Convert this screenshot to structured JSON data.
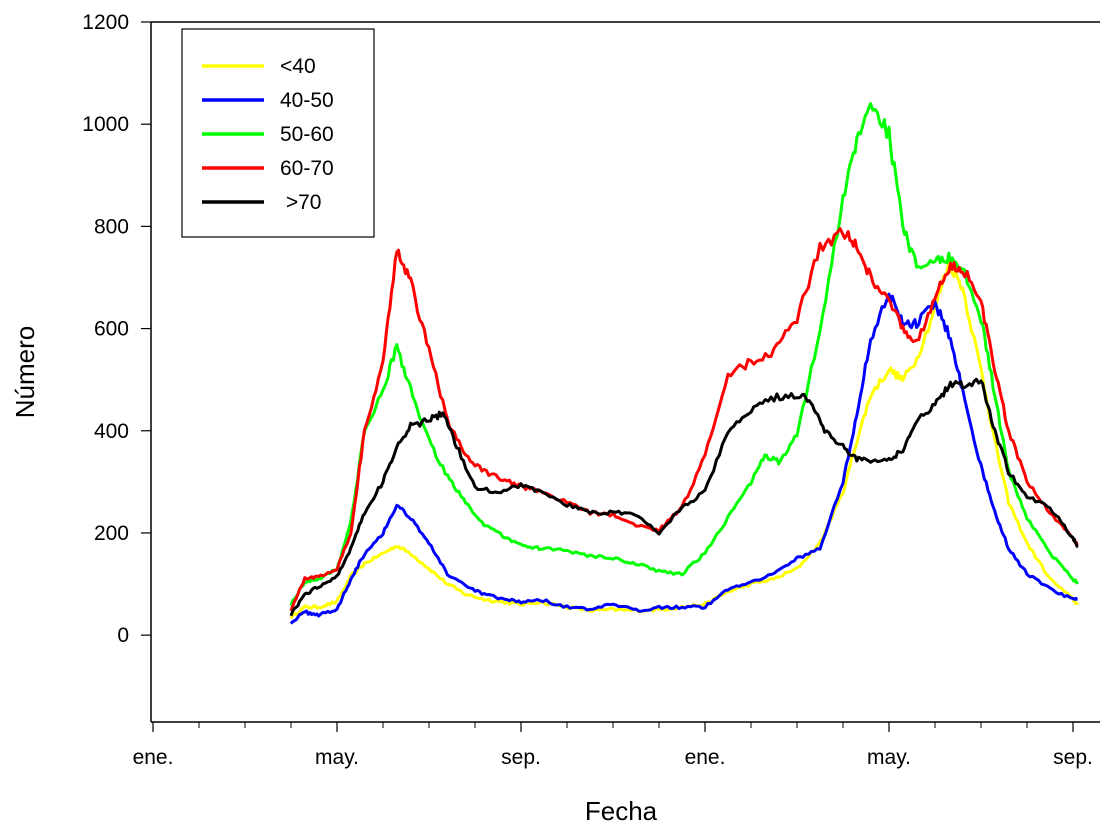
{
  "chart_data": {
    "type": "line",
    "title": "",
    "xlabel": "Fecha",
    "ylabel": "Número",
    "ylim": [
      -170,
      1200
    ],
    "xlim": [
      0,
      20.5
    ],
    "y_ticks": [
      0,
      200,
      400,
      600,
      800,
      1000,
      1200
    ],
    "x_ticks": [
      {
        "pos": 0,
        "label": "ene."
      },
      {
        "pos": 4,
        "label": "may."
      },
      {
        "pos": 8,
        "label": "sep."
      },
      {
        "pos": 12,
        "label": "ene."
      },
      {
        "pos": 16,
        "label": "may."
      },
      {
        "pos": 20,
        "label": "sep."
      }
    ],
    "x_minor_ticks": [
      1,
      2,
      3,
      5,
      6,
      7,
      9,
      10,
      11,
      13,
      14,
      15,
      17,
      18,
      19
    ],
    "grid": false,
    "legend_position": "top-left",
    "series": [
      {
        "name": "<40",
        "color": "#ffff00",
        "points": [
          [
            3.0,
            35
          ],
          [
            3.3,
            55
          ],
          [
            3.6,
            55
          ],
          [
            4.0,
            65
          ],
          [
            4.3,
            115
          ],
          [
            4.6,
            140
          ],
          [
            5.0,
            160
          ],
          [
            5.3,
            175
          ],
          [
            5.6,
            160
          ],
          [
            6.0,
            130
          ],
          [
            6.4,
            100
          ],
          [
            6.8,
            80
          ],
          [
            7.2,
            70
          ],
          [
            7.6,
            65
          ],
          [
            8.0,
            60
          ],
          [
            8.4,
            65
          ],
          [
            9.0,
            55
          ],
          [
            9.5,
            48
          ],
          [
            10.0,
            50
          ],
          [
            10.5,
            48
          ],
          [
            11.0,
            50
          ],
          [
            11.5,
            55
          ],
          [
            12.0,
            60
          ],
          [
            12.5,
            85
          ],
          [
            13.0,
            100
          ],
          [
            13.5,
            110
          ],
          [
            14.0,
            130
          ],
          [
            14.5,
            180
          ],
          [
            15.0,
            280
          ],
          [
            15.3,
            380
          ],
          [
            15.6,
            470
          ],
          [
            16.0,
            520
          ],
          [
            16.3,
            500
          ],
          [
            16.6,
            540
          ],
          [
            17.0,
            640
          ],
          [
            17.3,
            730
          ],
          [
            17.6,
            680
          ],
          [
            18.0,
            520
          ],
          [
            18.3,
            380
          ],
          [
            18.6,
            260
          ],
          [
            19.0,
            180
          ],
          [
            19.5,
            110
          ],
          [
            20.0,
            70
          ],
          [
            20.1,
            60
          ]
        ]
      },
      {
        "name": "40-50",
        "color": "#0000ff",
        "points": [
          [
            3.0,
            25
          ],
          [
            3.3,
            45
          ],
          [
            3.6,
            40
          ],
          [
            4.0,
            50
          ],
          [
            4.3,
            110
          ],
          [
            4.6,
            160
          ],
          [
            5.0,
            200
          ],
          [
            5.3,
            255
          ],
          [
            5.6,
            230
          ],
          [
            6.0,
            180
          ],
          [
            6.4,
            120
          ],
          [
            6.8,
            95
          ],
          [
            7.2,
            80
          ],
          [
            7.6,
            70
          ],
          [
            8.0,
            65
          ],
          [
            8.4,
            70
          ],
          [
            9.0,
            55
          ],
          [
            9.5,
            50
          ],
          [
            10.0,
            60
          ],
          [
            10.5,
            48
          ],
          [
            11.0,
            55
          ],
          [
            11.5,
            55
          ],
          [
            12.0,
            55
          ],
          [
            12.5,
            90
          ],
          [
            13.0,
            105
          ],
          [
            13.5,
            120
          ],
          [
            14.0,
            150
          ],
          [
            14.5,
            170
          ],
          [
            15.0,
            300
          ],
          [
            15.3,
            430
          ],
          [
            15.6,
            580
          ],
          [
            16.0,
            670
          ],
          [
            16.3,
            610
          ],
          [
            16.6,
            610
          ],
          [
            17.0,
            650
          ],
          [
            17.3,
            590
          ],
          [
            17.6,
            480
          ],
          [
            18.0,
            330
          ],
          [
            18.3,
            240
          ],
          [
            18.6,
            170
          ],
          [
            19.0,
            120
          ],
          [
            19.5,
            90
          ],
          [
            20.0,
            70
          ],
          [
            20.1,
            70
          ]
        ]
      },
      {
        "name": "50-60",
        "color": "#00ff00",
        "points": [
          [
            3.0,
            60
          ],
          [
            3.3,
            105
          ],
          [
            3.6,
            110
          ],
          [
            4.0,
            130
          ],
          [
            4.3,
            220
          ],
          [
            4.6,
            400
          ],
          [
            5.0,
            480
          ],
          [
            5.3,
            565
          ],
          [
            5.6,
            480
          ],
          [
            6.0,
            380
          ],
          [
            6.4,
            310
          ],
          [
            6.8,
            260
          ],
          [
            7.2,
            215
          ],
          [
            7.6,
            195
          ],
          [
            8.0,
            175
          ],
          [
            8.4,
            170
          ],
          [
            9.0,
            165
          ],
          [
            9.5,
            155
          ],
          [
            10.0,
            150
          ],
          [
            10.5,
            140
          ],
          [
            11.0,
            125
          ],
          [
            11.5,
            120
          ],
          [
            12.0,
            160
          ],
          [
            12.5,
            230
          ],
          [
            13.0,
            300
          ],
          [
            13.3,
            350
          ],
          [
            13.6,
            340
          ],
          [
            14.0,
            390
          ],
          [
            14.5,
            600
          ],
          [
            15.0,
            850
          ],
          [
            15.3,
            970
          ],
          [
            15.6,
            1045
          ],
          [
            16.0,
            980
          ],
          [
            16.3,
            800
          ],
          [
            16.6,
            720
          ],
          [
            17.0,
            730
          ],
          [
            17.3,
            740
          ],
          [
            17.6,
            720
          ],
          [
            18.0,
            620
          ],
          [
            18.3,
            470
          ],
          [
            18.6,
            320
          ],
          [
            19.0,
            230
          ],
          [
            19.5,
            160
          ],
          [
            20.0,
            110
          ],
          [
            20.1,
            100
          ]
        ]
      },
      {
        "name": "60-70",
        "color": "#ff0000",
        "points": [
          [
            3.0,
            50
          ],
          [
            3.3,
            110
          ],
          [
            3.6,
            115
          ],
          [
            4.0,
            130
          ],
          [
            4.3,
            200
          ],
          [
            4.6,
            400
          ],
          [
            5.0,
            530
          ],
          [
            5.3,
            760
          ],
          [
            5.6,
            690
          ],
          [
            6.0,
            560
          ],
          [
            6.4,
            420
          ],
          [
            6.8,
            350
          ],
          [
            7.2,
            320
          ],
          [
            7.6,
            305
          ],
          [
            8.0,
            290
          ],
          [
            8.4,
            280
          ],
          [
            9.0,
            260
          ],
          [
            9.5,
            240
          ],
          [
            10.0,
            235
          ],
          [
            10.5,
            215
          ],
          [
            11.0,
            205
          ],
          [
            11.5,
            250
          ],
          [
            12.0,
            350
          ],
          [
            12.5,
            510
          ],
          [
            13.0,
            535
          ],
          [
            13.5,
            555
          ],
          [
            14.0,
            620
          ],
          [
            14.5,
            760
          ],
          [
            15.0,
            790
          ],
          [
            15.3,
            760
          ],
          [
            15.6,
            700
          ],
          [
            16.0,
            660
          ],
          [
            16.3,
            600
          ],
          [
            16.6,
            570
          ],
          [
            17.0,
            660
          ],
          [
            17.3,
            720
          ],
          [
            17.6,
            720
          ],
          [
            18.0,
            650
          ],
          [
            18.3,
            520
          ],
          [
            18.6,
            400
          ],
          [
            19.0,
            300
          ],
          [
            19.5,
            240
          ],
          [
            20.0,
            190
          ],
          [
            20.1,
            175
          ]
        ]
      },
      {
        "name": ">70",
        "color": "#000000",
        "points": [
          [
            3.0,
            40
          ],
          [
            3.3,
            80
          ],
          [
            3.6,
            95
          ],
          [
            4.0,
            115
          ],
          [
            4.3,
            170
          ],
          [
            4.6,
            240
          ],
          [
            5.0,
            300
          ],
          [
            5.3,
            370
          ],
          [
            5.6,
            410
          ],
          [
            6.0,
            420
          ],
          [
            6.3,
            435
          ],
          [
            6.6,
            370
          ],
          [
            7.0,
            290
          ],
          [
            7.5,
            280
          ],
          [
            8.0,
            295
          ],
          [
            8.4,
            280
          ],
          [
            9.0,
            255
          ],
          [
            9.5,
            240
          ],
          [
            10.0,
            240
          ],
          [
            10.5,
            235
          ],
          [
            11.0,
            200
          ],
          [
            11.5,
            250
          ],
          [
            12.0,
            280
          ],
          [
            12.5,
            400
          ],
          [
            13.0,
            440
          ],
          [
            13.5,
            465
          ],
          [
            14.0,
            470
          ],
          [
            14.3,
            460
          ],
          [
            14.6,
            400
          ],
          [
            15.0,
            370
          ],
          [
            15.3,
            345
          ],
          [
            15.6,
            340
          ],
          [
            16.0,
            345
          ],
          [
            16.3,
            360
          ],
          [
            16.6,
            420
          ],
          [
            17.0,
            450
          ],
          [
            17.3,
            490
          ],
          [
            17.6,
            490
          ],
          [
            18.0,
            500
          ],
          [
            18.3,
            400
          ],
          [
            18.6,
            320
          ],
          [
            19.0,
            270
          ],
          [
            19.5,
            250
          ],
          [
            20.0,
            190
          ],
          [
            20.1,
            175
          ]
        ]
      }
    ]
  }
}
